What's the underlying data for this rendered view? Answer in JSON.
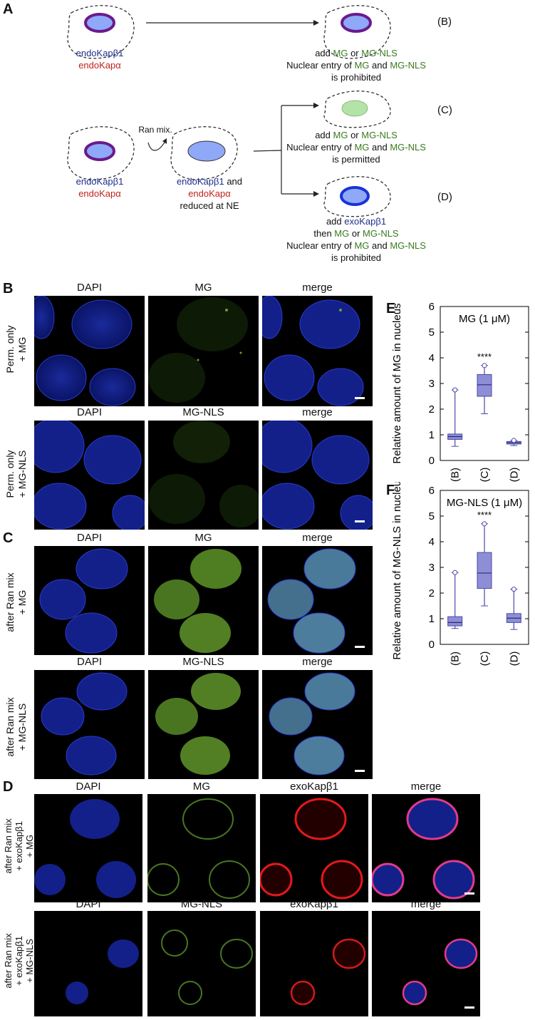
{
  "panelA": {
    "letter": "A",
    "endo1": "endoKapβ1",
    "endo2": "endoKapα",
    "endo1b": "endoKapβ1",
    "endo2b": "endoKapα",
    "ran_mix": "Ran mix.",
    "reduced_l1": "endoKapβ1",
    "reduced_l1b": " and",
    "reduced_l2": "endoKapα",
    "reduced_l3": "reduced at NE",
    "caseB": {
      "tag": "(B)",
      "add": "add ",
      "mg": "MG",
      "or": " or ",
      "mgnls": "MG-NLS",
      "entry": "Nuclear entry of ",
      "and": " and ",
      "verdict": "is prohibited"
    },
    "caseC": {
      "tag": "(C)",
      "add": "add ",
      "mg": "MG",
      "or": " or ",
      "mgnls": "MG-NLS",
      "entry": "Nuclear entry of ",
      "and": " and ",
      "verdict": "is permitted"
    },
    "caseD": {
      "tag": "(D)",
      "add": "add ",
      "exo": "exoKapβ1",
      "then": "then ",
      "mg": "MG",
      "or": " or ",
      "mgnls": "MG-NLS",
      "entry": "Nuclear entry of ",
      "and": " and ",
      "verdict": "is prohibited"
    }
  },
  "panelB": {
    "letter": "B",
    "row1": {
      "cols": [
        "DAPI",
        "MG",
        "merge"
      ],
      "label1": "Perm. only",
      "label2": "+ MG"
    },
    "row2": {
      "cols": [
        "DAPI",
        "MG-NLS",
        "merge"
      ],
      "label1": "Perm. only",
      "label2": "+ MG-NLS"
    }
  },
  "panelC": {
    "letter": "C",
    "row1": {
      "cols": [
        "DAPI",
        "MG",
        "merge"
      ],
      "label1": "after Ran mix",
      "label2": "+ MG"
    },
    "row2": {
      "cols": [
        "DAPI",
        "MG-NLS",
        "merge"
      ],
      "label1": "after Ran mix",
      "label2": "+ MG-NLS"
    }
  },
  "panelD": {
    "letter": "D",
    "row1": {
      "cols": [
        "DAPI",
        "MG",
        "exoKapβ1",
        "merge"
      ],
      "label1": "after Ran mix",
      "label2": "+ exoKapβ1",
      "label3": "+ MG"
    },
    "row2": {
      "cols": [
        "DAPI",
        "MG-NLS",
        "exoKapβ1",
        "merge"
      ],
      "label1": "after Ran mix",
      "label2": "+ exoKapβ1",
      "label3": "+ MG-NLS"
    }
  },
  "chart_data": [
    {
      "panel": "E",
      "type": "box",
      "title": "MG (1 μM)",
      "ylabel": "Relative amount of MG in nucleus",
      "categories": [
        "(B)",
        "(C)",
        "(D)"
      ],
      "ylim": [
        0,
        6
      ],
      "yticks": [
        0,
        1,
        2,
        3,
        4,
        5,
        6
      ],
      "significance": {
        "category": "(C)",
        "label": "****"
      },
      "boxes": [
        {
          "min": 0.55,
          "q1": 0.82,
          "median": 0.93,
          "q3": 1.03,
          "max": 2.75
        },
        {
          "min": 1.82,
          "q1": 2.5,
          "median": 2.95,
          "q3": 3.35,
          "max": 3.7
        },
        {
          "min": 0.58,
          "q1": 0.64,
          "median": 0.69,
          "q3": 0.74,
          "max": 0.78
        }
      ]
    },
    {
      "panel": "F",
      "type": "box",
      "title": "MG-NLS (1 μM)",
      "ylabel": "Relative amount of MG-NLS in nucleus",
      "categories": [
        "(B)",
        "(C)",
        "(D)"
      ],
      "ylim": [
        0,
        6
      ],
      "yticks": [
        0,
        1,
        2,
        3,
        4,
        5,
        6
      ],
      "significance": {
        "category": "(C)",
        "label": "****"
      },
      "boxes": [
        {
          "min": 0.62,
          "q1": 0.72,
          "median": 0.85,
          "q3": 1.08,
          "max": 2.8
        },
        {
          "min": 1.5,
          "q1": 2.18,
          "median": 2.78,
          "q3": 3.58,
          "max": 4.7
        },
        {
          "min": 0.58,
          "q1": 0.85,
          "median": 1.02,
          "q3": 1.2,
          "max": 2.15
        }
      ]
    }
  ]
}
